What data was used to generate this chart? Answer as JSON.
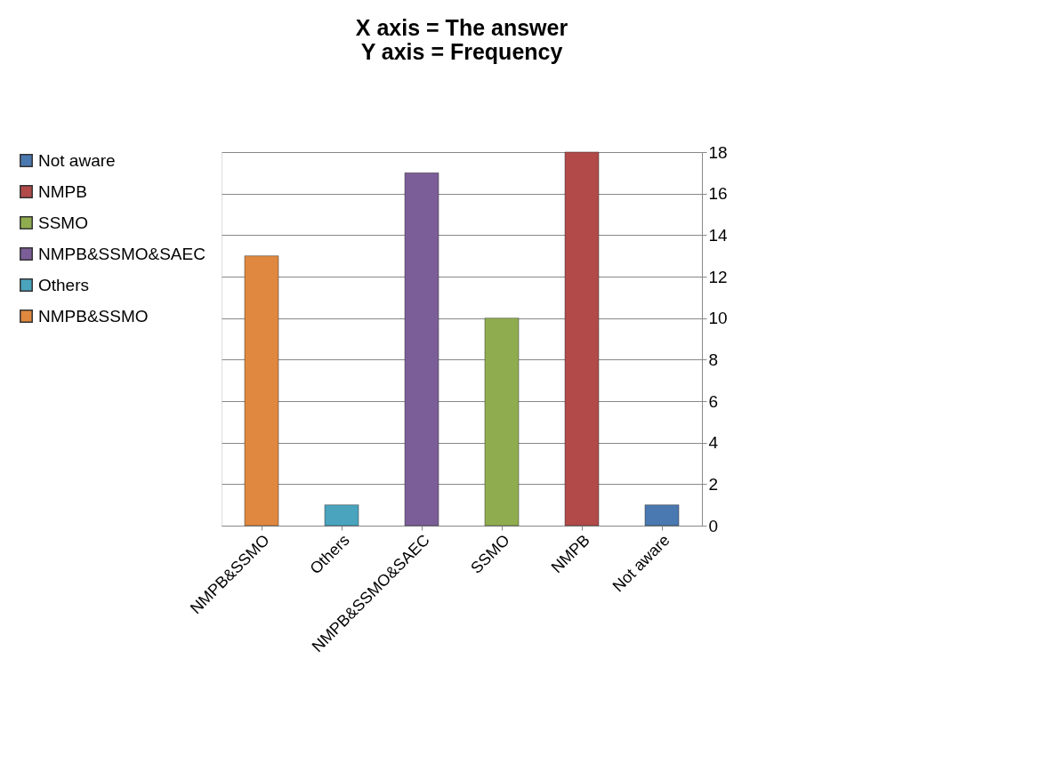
{
  "chart_data": {
    "type": "bar",
    "title": [
      "X axis = The answer",
      "Y axis = Frequency"
    ],
    "categories": [
      "NMPB&SSMO",
      "Others",
      "NMPB&SSMO&SAEC",
      "SSMO",
      "NMPB",
      "Not aware"
    ],
    "series": [
      {
        "name": "Not aware",
        "color": "#4a78b0",
        "values": [
          null,
          null,
          null,
          null,
          null,
          1
        ]
      },
      {
        "name": "NMPB",
        "color": "#b14a48",
        "values": [
          null,
          null,
          null,
          null,
          18,
          null
        ]
      },
      {
        "name": "SSMO",
        "color": "#8fad4f",
        "values": [
          null,
          null,
          null,
          10,
          null,
          null
        ]
      },
      {
        "name": "NMPB&SSMO&SAEC",
        "color": "#7b5e98",
        "values": [
          null,
          null,
          17,
          null,
          null,
          null
        ]
      },
      {
        "name": "Others",
        "color": "#4aa4be",
        "values": [
          null,
          1,
          null,
          null,
          null,
          null
        ]
      },
      {
        "name": "NMPB&SSMO",
        "color": "#e0883f",
        "values": [
          13,
          null,
          null,
          null,
          null,
          null
        ]
      }
    ],
    "ylim": [
      0,
      18
    ],
    "yticks": [
      0,
      2,
      4,
      6,
      8,
      10,
      12,
      14,
      16,
      18
    ],
    "grid": "y",
    "legend": "left"
  }
}
